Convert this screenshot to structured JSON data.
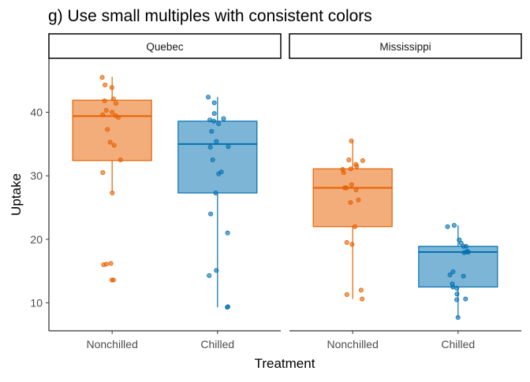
{
  "title": "g) Use small multiples with consistent colors",
  "chart_data": {
    "type": "boxplot",
    "facets": [
      "Quebec",
      "Mississippi"
    ],
    "categories": [
      "Nonchilled",
      "Chilled"
    ],
    "xlabel": "Treatment",
    "ylabel": "Uptake",
    "ylim": [
      5.6,
      48.5
    ],
    "yticks": [
      10,
      20,
      30,
      40
    ],
    "grid": false,
    "legend": "none",
    "colors": {
      "Nonchilled": "#E66101",
      "Chilled": "#0571B0"
    },
    "panels": [
      {
        "facet": "Quebec",
        "boxes": [
          {
            "category": "Nonchilled",
            "color": "#E66101",
            "ymin": 27.4,
            "q1": 32.4,
            "median": 39.4,
            "q3": 41.9,
            "ymax": 45.6,
            "points": [
              13.6,
              13.6,
              16.0,
              16.1,
              16.2,
              27.3,
              30.5,
              32.5,
              34.8,
              35.3,
              37.3,
              39.2,
              39.5,
              39.6,
              40.0,
              40.3,
              41.4,
              41.8,
              42.1,
              43.9,
              44.3,
              45.5
            ]
          },
          {
            "category": "Chilled",
            "color": "#0571B0",
            "ymin": 9.3,
            "q1": 27.3,
            "median": 35.0,
            "q3": 38.6,
            "ymax": 42.4,
            "points": [
              9.3,
              9.4,
              14.3,
              15.1,
              21.0,
              24.0,
              27.3,
              30.3,
              30.6,
              32.5,
              34.5,
              34.6,
              35.4,
              37.0,
              38.2,
              38.6,
              38.8,
              39.0,
              39.8,
              41.5,
              42.4
            ]
          }
        ]
      },
      {
        "facet": "Mississippi",
        "boxes": [
          {
            "category": "Nonchilled",
            "color": "#E66101",
            "ymin": 10.6,
            "q1": 22.0,
            "median": 28.1,
            "q3": 31.1,
            "ymax": 35.5,
            "points": [
              10.6,
              11.3,
              12.0,
              19.2,
              19.5,
              22.0,
              25.8,
              26.2,
              27.8,
              28.1,
              28.1,
              28.6,
              30.5,
              31.0,
              31.1,
              31.5,
              31.8,
              32.4,
              32.5,
              35.5
            ]
          },
          {
            "category": "Chilled",
            "color": "#0571B0",
            "ymin": 7.7,
            "q1": 12.5,
            "median": 18.0,
            "q3": 18.9,
            "ymax": 22.2,
            "points": [
              7.7,
              10.5,
              10.6,
              11.4,
              12.3,
              12.5,
              13.0,
              14.2,
              14.4,
              14.9,
              17.9,
              18.0,
              18.0,
              18.1,
              18.9,
              18.9,
              19.4,
              19.9,
              22.0,
              22.2
            ]
          }
        ]
      }
    ]
  }
}
